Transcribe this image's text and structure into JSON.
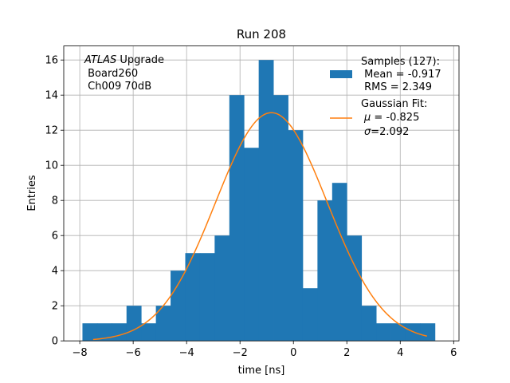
{
  "chart_data": {
    "type": "bar",
    "title": "Run 208",
    "xlabel": "time [ns]",
    "ylabel": "Entries",
    "xlim": [
      -8.6,
      6.2
    ],
    "ylim": [
      0,
      16.8
    ],
    "xticks": [
      -8,
      -6,
      -4,
      -2,
      0,
      2,
      4,
      6
    ],
    "xtick_labels": [
      "−8",
      "−6",
      "−4",
      "−2",
      "0",
      "2",
      "4",
      "6"
    ],
    "yticks": [
      0,
      2,
      4,
      6,
      8,
      10,
      12,
      14,
      16
    ],
    "grid": true,
    "bar_color": "#1f77b4",
    "fit_color": "#ff7f0e",
    "histogram": {
      "bins": [
        {
          "x0": -7.9,
          "x1": -7.35,
          "value": 1
        },
        {
          "x0": -7.35,
          "x1": -6.8,
          "value": 1
        },
        {
          "x0": -6.8,
          "x1": -6.25,
          "value": 1
        },
        {
          "x0": -6.25,
          "x1": -5.7,
          "value": 2
        },
        {
          "x0": -5.7,
          "x1": -5.15,
          "value": 1
        },
        {
          "x0": -5.15,
          "x1": -4.6,
          "value": 2
        },
        {
          "x0": -4.6,
          "x1": -4.05,
          "value": 4
        },
        {
          "x0": -4.05,
          "x1": -3.5,
          "value": 5
        },
        {
          "x0": -3.5,
          "x1": -2.95,
          "value": 5
        },
        {
          "x0": -2.95,
          "x1": -2.4,
          "value": 6
        },
        {
          "x0": -2.4,
          "x1": -1.85,
          "value": 14
        },
        {
          "x0": -1.85,
          "x1": -1.3,
          "value": 11
        },
        {
          "x0": -1.3,
          "x1": -0.75,
          "value": 16
        },
        {
          "x0": -0.75,
          "x1": -0.2,
          "value": 14
        },
        {
          "x0": -0.2,
          "x1": 0.35,
          "value": 12
        },
        {
          "x0": 0.35,
          "x1": 0.9,
          "value": 3
        },
        {
          "x0": 0.9,
          "x1": 1.45,
          "value": 8
        },
        {
          "x0": 1.45,
          "x1": 2.0,
          "value": 9
        },
        {
          "x0": 2.0,
          "x1": 2.55,
          "value": 6
        },
        {
          "x0": 2.55,
          "x1": 3.1,
          "value": 2
        },
        {
          "x0": 3.1,
          "x1": 3.65,
          "value": 1
        },
        {
          "x0": 3.65,
          "x1": 4.2,
          "value": 1
        },
        {
          "x0": 4.2,
          "x1": 4.75,
          "value": 1
        },
        {
          "x0": 4.75,
          "x1": 5.3,
          "value": 1
        }
      ]
    },
    "gaussian_fit": {
      "amplitude": 13.0,
      "mu": -0.825,
      "sigma": 2.092,
      "x_range": [
        -7.5,
        5.0
      ]
    },
    "legend": {
      "location": "upper right",
      "samples": {
        "title": "Samples (127):",
        "mean": " Mean = -0.917",
        "rms": " RMS = 2.349"
      },
      "fit": {
        "title": "Gaussian Fit:",
        "mu_symbol": "μ",
        "mu_text": " = -0.825",
        "sigma_symbol": "σ",
        "sigma_text": "=2.092"
      }
    },
    "annotation": {
      "italic": "ATLAS",
      "line1_rest": " Upgrade",
      "line2": " Board260",
      "line3": " Ch009 70dB"
    }
  }
}
